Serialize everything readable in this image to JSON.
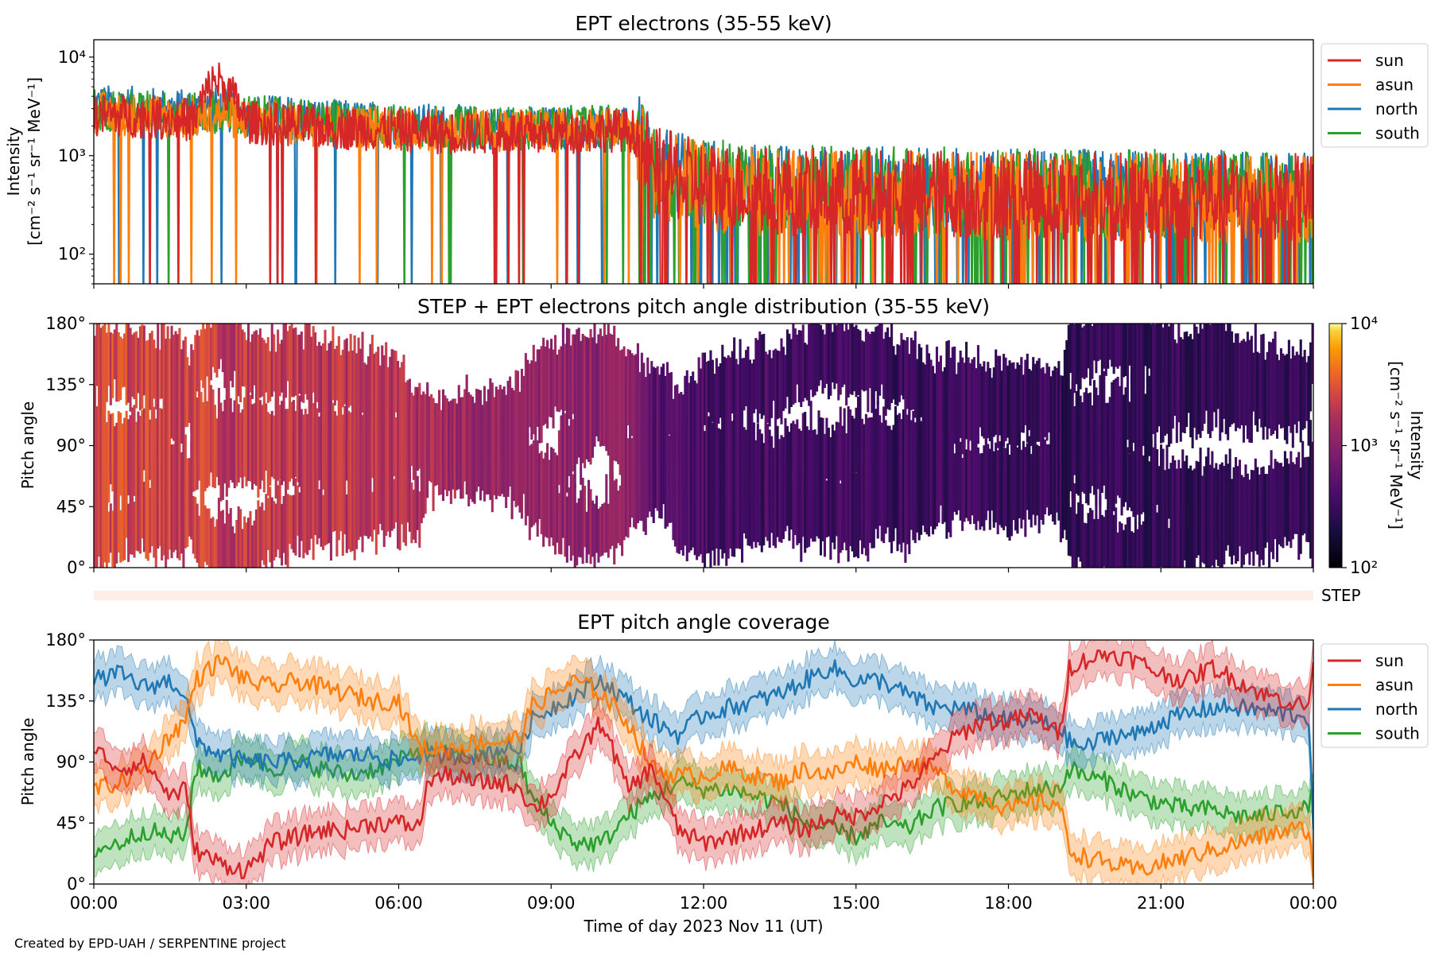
{
  "credit": "Created by EPD-UAH / SERPENTINE project",
  "series_colors": {
    "sun": "#d62728",
    "asun": "#ff7f0e",
    "north": "#1f77b4",
    "south": "#2ca02c"
  },
  "chart_data": [
    {
      "type": "line",
      "title": "EPT electrons (35-55 keV)",
      "ylabel_line1": "Intensity",
      "ylabel_line2": "[cm⁻² s⁻¹ sr⁻¹ MeV⁻¹]",
      "yscale": "log",
      "ylim": [
        50,
        15000
      ],
      "yticks": [
        "10²",
        "10³",
        "10⁴"
      ],
      "xlim": [
        0,
        24
      ],
      "legend": [
        "sun",
        "asun",
        "north",
        "south"
      ],
      "legend_position": "outside-right",
      "x": [
        0,
        1,
        2,
        2.4,
        3,
        4,
        5,
        6,
        7,
        8,
        9,
        10,
        10.6,
        11,
        12,
        14,
        16,
        18,
        20,
        22,
        24
      ],
      "series": [
        {
          "name": "sun",
          "values": [
            2600,
            2500,
            2300,
            6000,
            2200,
            2000,
            1900,
            1800,
            1700,
            1700,
            1700,
            1800,
            1800,
            700,
            500,
            420,
            420,
            400,
            390,
            380,
            370
          ]
        },
        {
          "name": "asun",
          "values": [
            2700,
            2600,
            2400,
            2700,
            2300,
            2100,
            2000,
            1900,
            1800,
            1800,
            1800,
            1900,
            1700,
            650,
            480,
            400,
            400,
            380,
            380,
            370,
            360
          ]
        },
        {
          "name": "north",
          "values": [
            3200,
            3000,
            2800,
            3000,
            2600,
            2400,
            2200,
            2100,
            2000,
            1900,
            1900,
            2000,
            1800,
            700,
            520,
            450,
            440,
            420,
            410,
            400,
            390
          ]
        },
        {
          "name": "south",
          "values": [
            3000,
            2800,
            2600,
            2800,
            2500,
            2300,
            2100,
            2000,
            1900,
            1900,
            1900,
            2000,
            1800,
            700,
            520,
            460,
            450,
            430,
            420,
            410,
            400
          ]
        }
      ]
    },
    {
      "type": "heatmap",
      "title": "STEP + EPT electrons pitch angle distribution (35-55 keV)",
      "ylabel": "Pitch angle",
      "yticks": [
        "0°",
        "45°",
        "90°",
        "135°",
        "180°"
      ],
      "ylim": [
        0,
        180
      ],
      "xlim": [
        0,
        24
      ],
      "colorbar": {
        "label": "Intensity",
        "units": "[cm⁻² s⁻¹ sr⁻¹ MeV⁻¹]",
        "scale": "log",
        "range": [
          100,
          10000
        ],
        "ticks": [
          "10²",
          "10³",
          "10⁴"
        ],
        "colormap": "inferno"
      },
      "step_label": "STEP",
      "x_hours": [
        0,
        1,
        2,
        3,
        4,
        5,
        6,
        6.4,
        7,
        7.8,
        8.4,
        9,
        10,
        10.6,
        11,
        12,
        13,
        14,
        15,
        16,
        17,
        18,
        19,
        19.2,
        20,
        21,
        22,
        23,
        24
      ],
      "intensity": [
        2600,
        2500,
        2300,
        2100,
        2000,
        1900,
        1800,
        1500,
        1400,
        1300,
        1300,
        1200,
        1100,
        1000,
        500,
        380,
        360,
        340,
        330,
        320,
        320,
        310,
        300,
        260,
        270,
        290,
        300,
        290,
        290
      ]
    },
    {
      "type": "line",
      "title": "EPT pitch angle coverage",
      "ylabel": "Pitch angle",
      "yticks": [
        "0°",
        "45°",
        "90°",
        "135°",
        "180°"
      ],
      "ylim": [
        0,
        180
      ],
      "xlabel": "Time of day 2023 Nov 11 (UT)",
      "xticks": [
        "00:00",
        "03:00",
        "06:00",
        "09:00",
        "12:00",
        "15:00",
        "18:00",
        "21:00",
        "00:00"
      ],
      "xlim": [
        0,
        24
      ],
      "legend": [
        "sun",
        "asun",
        "north",
        "south"
      ],
      "legend_position": "outside-right",
      "x": [
        0,
        0.5,
        1,
        1.5,
        1.8,
        2,
        2.5,
        3,
        3.5,
        4,
        4.5,
        5,
        5.5,
        6,
        6.4,
        6.6,
        7,
        7.5,
        8,
        8.4,
        8.6,
        9,
        9.5,
        10,
        10.5,
        11,
        11.5,
        12,
        12.5,
        13,
        13.5,
        14,
        14.5,
        15,
        15.5,
        16,
        16.5,
        17,
        17.5,
        18,
        18.5,
        19,
        19.2,
        19.5,
        20,
        20.5,
        21,
        21.5,
        22,
        22.5,
        23,
        23.5,
        23.9,
        24
      ],
      "series": [
        {
          "name": "sun",
          "values": [
            100,
            85,
            90,
            65,
            70,
            25,
            15,
            10,
            30,
            35,
            40,
            40,
            45,
            45,
            42,
            78,
            80,
            75,
            75,
            72,
            55,
            65,
            95,
            120,
            70,
            85,
            40,
            30,
            35,
            40,
            45,
            40,
            50,
            50,
            60,
            70,
            90,
            110,
            120,
            120,
            125,
            110,
            160,
            165,
            170,
            165,
            155,
            150,
            160,
            150,
            140,
            135,
            130,
            165
          ]
        },
        {
          "name": "asun",
          "values": [
            70,
            75,
            85,
            110,
            120,
            150,
            165,
            150,
            145,
            150,
            145,
            140,
            135,
            135,
            100,
            100,
            100,
            105,
            105,
            108,
            130,
            140,
            150,
            140,
            120,
            85,
            80,
            80,
            85,
            80,
            75,
            85,
            80,
            90,
            85,
            90,
            85,
            70,
            65,
            55,
            60,
            60,
            25,
            20,
            15,
            10,
            15,
            20,
            25,
            30,
            35,
            40,
            40,
            10
          ]
        },
        {
          "name": "north",
          "values": [
            150,
            155,
            145,
            150,
            140,
            105,
            95,
            90,
            90,
            90,
            95,
            95,
            95,
            90,
            95,
            95,
            95,
            95,
            100,
            100,
            120,
            130,
            140,
            150,
            135,
            120,
            110,
            125,
            130,
            135,
            140,
            150,
            160,
            150,
            150,
            140,
            130,
            130,
            125,
            120,
            120,
            115,
            105,
            100,
            110,
            110,
            120,
            125,
            130,
            130,
            128,
            125,
            125,
            40
          ]
        },
        {
          "name": "south",
          "values": [
            25,
            30,
            40,
            35,
            35,
            85,
            80,
            95,
            85,
            90,
            85,
            80,
            85,
            90,
            100,
            98,
            95,
            95,
            90,
            88,
            65,
            45,
            30,
            30,
            50,
            65,
            75,
            70,
            70,
            65,
            60,
            45,
            40,
            35,
            45,
            40,
            55,
            60,
            60,
            65,
            70,
            70,
            85,
            80,
            75,
            65,
            60,
            55,
            55,
            50,
            50,
            55,
            55,
            70
          ]
        }
      ]
    }
  ]
}
